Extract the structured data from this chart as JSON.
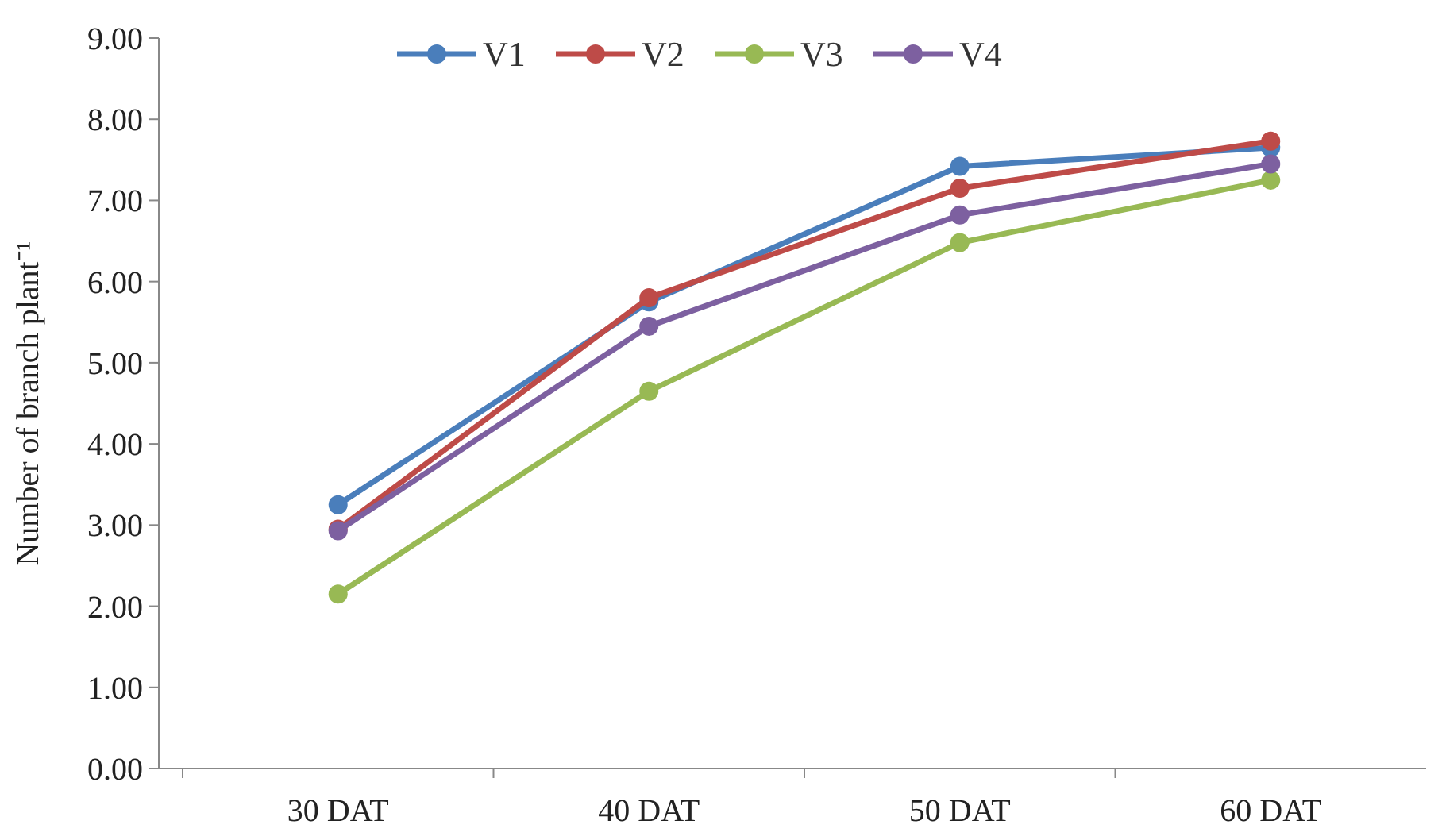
{
  "chart_data": {
    "type": "line",
    "ylabel": "Number of branch plant⁻¹",
    "categories": [
      "30 DAT",
      "40 DAT",
      "50 DAT",
      "60 DAT"
    ],
    "series": [
      {
        "name": "V1",
        "color": "#4a7ebb",
        "values": [
          3.25,
          5.75,
          7.42,
          7.65
        ]
      },
      {
        "name": "V2",
        "color": "#be4b48",
        "values": [
          2.95,
          5.8,
          7.15,
          7.73
        ]
      },
      {
        "name": "V3",
        "color": "#98b954",
        "values": [
          2.15,
          4.65,
          6.48,
          7.25
        ]
      },
      {
        "name": "V4",
        "color": "#7d60a0",
        "values": [
          2.93,
          5.45,
          6.82,
          7.45
        ]
      }
    ],
    "ylim": [
      0,
      9
    ],
    "yticks": [
      {
        "value": 0,
        "label": "0.00"
      },
      {
        "value": 1,
        "label": "1.00"
      },
      {
        "value": 2,
        "label": "2.00"
      },
      {
        "value": 3,
        "label": "3.00"
      },
      {
        "value": 4,
        "label": "4.00"
      },
      {
        "value": 5,
        "label": "5.00"
      },
      {
        "value": 6,
        "label": "6.00"
      },
      {
        "value": 7,
        "label": "7.00"
      },
      {
        "value": 8,
        "label": "8.00"
      },
      {
        "value": 9,
        "label": "9.00"
      }
    ],
    "marker": "circle",
    "legend": "top",
    "grid": false
  }
}
